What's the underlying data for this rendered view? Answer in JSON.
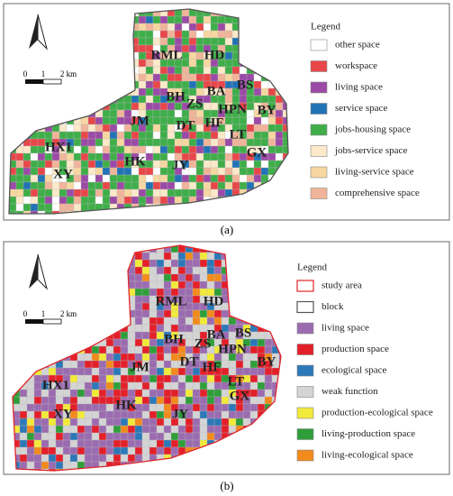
{
  "panels": [
    {
      "caption": "(a)",
      "scale_labels": [
        "0",
        "1",
        "2 km"
      ],
      "legend": {
        "title": "Legend",
        "items": [
          {
            "label": "other space",
            "color": "#ffffff"
          },
          {
            "label": "workspace",
            "color": "#e8474a"
          },
          {
            "label": "living space",
            "color": "#9b4aa6"
          },
          {
            "label": "service space",
            "color": "#2273b5"
          },
          {
            "label": "jobs-housing space",
            "color": "#3fae49"
          },
          {
            "label": "jobs-service space",
            "color": "#fbe9c9"
          },
          {
            "label": "living-service space",
            "color": "#f7d7a0"
          },
          {
            "label": "comprehensive space",
            "color": "#f0b49a"
          }
        ]
      },
      "districts": [
        "RML",
        "HD",
        "BH",
        "ZS",
        "BA",
        "BS",
        "HPN",
        "BY",
        "DT",
        "HF",
        "JM",
        "LT",
        "HX1",
        "GX",
        "HK",
        "JY",
        "XY"
      ]
    },
    {
      "caption": "(b)",
      "scale_labels": [
        "0",
        "1",
        "2 km"
      ],
      "legend": {
        "title": "Legend",
        "items": [
          {
            "label": "study area",
            "color": "#ffffff",
            "stroke": "#e0262a"
          },
          {
            "label": "block",
            "color": "#ffffff",
            "stroke": "#555555"
          },
          {
            "label": "living space",
            "color": "#9b6bb0"
          },
          {
            "label": "production space",
            "color": "#e3202a"
          },
          {
            "label": "ecological space",
            "color": "#2c78b8"
          },
          {
            "label": "weak function",
            "color": "#d4d4d4"
          },
          {
            "label": "production-ecological space",
            "color": "#f2ea3a"
          },
          {
            "label": "living-production space",
            "color": "#2f9e3a"
          },
          {
            "label": "living-ecological space",
            "color": "#f28a1c"
          }
        ]
      },
      "districts": [
        "RML",
        "HD",
        "BH",
        "ZS",
        "BA",
        "BS",
        "HPN",
        "BY",
        "DT",
        "HF",
        "JM",
        "LT",
        "HX1",
        "GX",
        "HK",
        "JY",
        "XY"
      ]
    }
  ]
}
